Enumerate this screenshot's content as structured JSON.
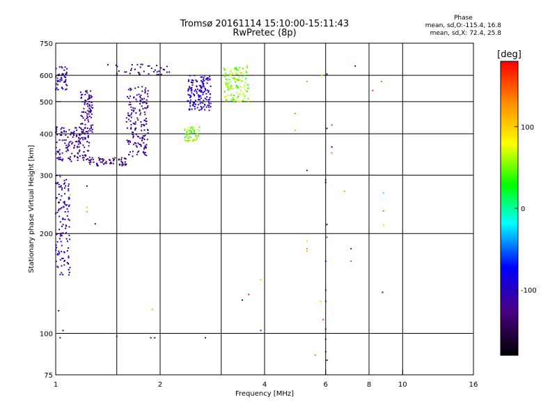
{
  "header": {
    "title_line1": "Tromsø 20161114 15:10:00-15:11:43",
    "title_line2": "RwPretec (8p)",
    "phase_heading": "Phase",
    "phase_stat1": "mean, sd,O:-115.4, 16.8",
    "phase_stat2": "mean, sd,X:  72.4, 25.8"
  },
  "colorbar": {
    "unit_label": "[deg]",
    "ticks": [
      {
        "label": "100",
        "value": 100
      },
      {
        "label": "0",
        "value": 0
      },
      {
        "label": "-100",
        "value": -100
      }
    ],
    "range": [
      -180,
      180
    ],
    "colors": [
      "#000000",
      "#4b0082",
      "#0000ff",
      "#00ffff",
      "#00ff00",
      "#ffff00",
      "#ff8c00",
      "#ff0000"
    ]
  },
  "chart_data": {
    "type": "scatter",
    "title": "Tromsø 20161114 15:10:00-15:11:43",
    "subtitle": "RwPretec (8p)",
    "xlabel": "Frequency [MHz]",
    "ylabel": "Stationary phase Virtual Height [km]",
    "x_scale": "log",
    "y_scale": "log",
    "xlim": [
      1,
      16
    ],
    "ylim": [
      75,
      750
    ],
    "grid": true,
    "x_ticks": [
      {
        "label": "1",
        "value": 1
      },
      {
        "label": "2",
        "value": 2
      },
      {
        "label": "4",
        "value": 4
      },
      {
        "label": "6",
        "value": 6
      },
      {
        "label": "8",
        "value": 8
      },
      {
        "label": "10",
        "value": 10
      },
      {
        "label": "16",
        "value": 16
      }
    ],
    "x_grid_values": [
      1.5,
      3,
      8
    ],
    "y_ticks": [
      {
        "label": "750",
        "value": 750
      },
      {
        "label": "600",
        "value": 600
      },
      {
        "label": "500",
        "value": 500
      },
      {
        "label": "400",
        "value": 400
      },
      {
        "label": "300",
        "value": 300
      },
      {
        "label": "200",
        "value": 200
      },
      {
        "label": "100",
        "value": 100
      },
      {
        "label": "75",
        "value": 75
      }
    ],
    "clusters": [
      {
        "description": "O-mode low freq",
        "x_range": [
          1.0,
          1.1
        ],
        "y_range": [
          150,
          300
        ],
        "phase": -105,
        "count": 120
      },
      {
        "description": "O-mode trace",
        "x_range": [
          1.0,
          1.25
        ],
        "y_range": [
          330,
          420
        ],
        "phase": -120,
        "count": 150
      },
      {
        "description": "O-mode near 1",
        "x_range": [
          1.0,
          1.08
        ],
        "y_range": [
          540,
          640
        ],
        "phase": -105,
        "count": 50
      },
      {
        "description": "O-mode rise to 1.25",
        "x_range": [
          1.18,
          1.28
        ],
        "y_range": [
          400,
          540
        ],
        "phase": -115,
        "count": 90
      },
      {
        "description": "O-mode base",
        "x_range": [
          1.25,
          1.6
        ],
        "y_range": [
          320,
          340
        ],
        "phase": -130,
        "count": 60
      },
      {
        "description": "O-mode rise to 1.85",
        "x_range": [
          1.6,
          1.85
        ],
        "y_range": [
          340,
          560
        ],
        "phase": -120,
        "count": 160
      },
      {
        "description": "O-mode top",
        "x_range": [
          1.4,
          2.2
        ],
        "y_range": [
          600,
          650
        ],
        "phase": -130,
        "count": 40
      },
      {
        "description": "O-mode at 2.6",
        "x_range": [
          2.4,
          2.8
        ],
        "y_range": [
          470,
          600
        ],
        "phase": -100,
        "count": 150
      },
      {
        "description": "X-mode",
        "x_range": [
          3.05,
          3.6
        ],
        "y_range": [
          500,
          640
        ],
        "phase": 55,
        "count": 120
      },
      {
        "description": "X-mode lower",
        "x_range": [
          2.35,
          2.6
        ],
        "y_range": [
          380,
          420
        ],
        "phase": 50,
        "count": 50
      }
    ],
    "points": [
      {
        "x": 5.3,
        "y": 310,
        "phase": -130
      },
      {
        "x": 6.05,
        "y": 605,
        "phase": -100
      },
      {
        "x": 6.05,
        "y": 415,
        "phase": -150
      },
      {
        "x": 6.0,
        "y": 290,
        "phase": -150
      },
      {
        "x": 6.0,
        "y": 285,
        "phase": -150
      },
      {
        "x": 6.05,
        "y": 213,
        "phase": -100
      },
      {
        "x": 6.05,
        "y": 195,
        "phase": -50
      },
      {
        "x": 6.0,
        "y": 165,
        "phase": -80
      },
      {
        "x": 6.0,
        "y": 135,
        "phase": -120
      },
      {
        "x": 6.0,
        "y": 125,
        "phase": -100
      },
      {
        "x": 5.9,
        "y": 110,
        "phase": 155
      },
      {
        "x": 6.0,
        "y": 103,
        "phase": -120
      },
      {
        "x": 6.0,
        "y": 96,
        "phase": -100
      },
      {
        "x": 6.0,
        "y": 88,
        "phase": -100
      },
      {
        "x": 6.05,
        "y": 83,
        "phase": -100
      },
      {
        "x": 6.25,
        "y": 425,
        "phase": 160
      },
      {
        "x": 6.25,
        "y": 365,
        "phase": -120
      },
      {
        "x": 6.25,
        "y": 350,
        "phase": 140
      },
      {
        "x": 5.3,
        "y": 575,
        "phase": 130
      },
      {
        "x": 5.85,
        "y": 600,
        "phase": 100
      },
      {
        "x": 4.9,
        "y": 460,
        "phase": 130
      },
      {
        "x": 4.9,
        "y": 410,
        "phase": 110
      },
      {
        "x": 5.3,
        "y": 190,
        "phase": 100
      },
      {
        "x": 5.3,
        "y": 180,
        "phase": 130
      },
      {
        "x": 5.3,
        "y": 177,
        "phase": 120
      },
      {
        "x": 5.8,
        "y": 125,
        "phase": 60
      },
      {
        "x": 5.6,
        "y": 86,
        "phase": 130
      },
      {
        "x": 6.8,
        "y": 268,
        "phase": 120
      },
      {
        "x": 7.1,
        "y": 165,
        "phase": 150
      },
      {
        "x": 7.1,
        "y": 180,
        "phase": -60
      },
      {
        "x": 7.3,
        "y": 640,
        "phase": -100
      },
      {
        "x": 8.2,
        "y": 540,
        "phase": 160
      },
      {
        "x": 8.7,
        "y": 575,
        "phase": 140
      },
      {
        "x": 8.8,
        "y": 265,
        "phase": -20
      },
      {
        "x": 8.8,
        "y": 234,
        "phase": 140
      },
      {
        "x": 8.8,
        "y": 212,
        "phase": 100
      },
      {
        "x": 8.75,
        "y": 133,
        "phase": -100
      },
      {
        "x": 3.9,
        "y": 145,
        "phase": 110
      },
      {
        "x": 3.9,
        "y": 102,
        "phase": -60
      },
      {
        "x": 3.6,
        "y": 131,
        "phase": 170
      },
      {
        "x": 3.45,
        "y": 126,
        "phase": -140
      },
      {
        "x": 1.02,
        "y": 117,
        "phase": -100
      },
      {
        "x": 1.03,
        "y": 97,
        "phase": -120
      },
      {
        "x": 1.05,
        "y": 102,
        "phase": -140
      },
      {
        "x": 1.23,
        "y": 278,
        "phase": -140
      },
      {
        "x": 1.23,
        "y": 240,
        "phase": 110
      },
      {
        "x": 1.23,
        "y": 233,
        "phase": 130
      },
      {
        "x": 1.3,
        "y": 214,
        "phase": -140
      },
      {
        "x": 1.5,
        "y": 98,
        "phase": -120
      },
      {
        "x": 1.88,
        "y": 97,
        "phase": -140
      },
      {
        "x": 1.93,
        "y": 97,
        "phase": -120
      },
      {
        "x": 1.9,
        "y": 118,
        "phase": 110
      },
      {
        "x": 1.1,
        "y": 262,
        "phase": 110
      },
      {
        "x": 2.7,
        "y": 97,
        "phase": -120
      }
    ]
  }
}
